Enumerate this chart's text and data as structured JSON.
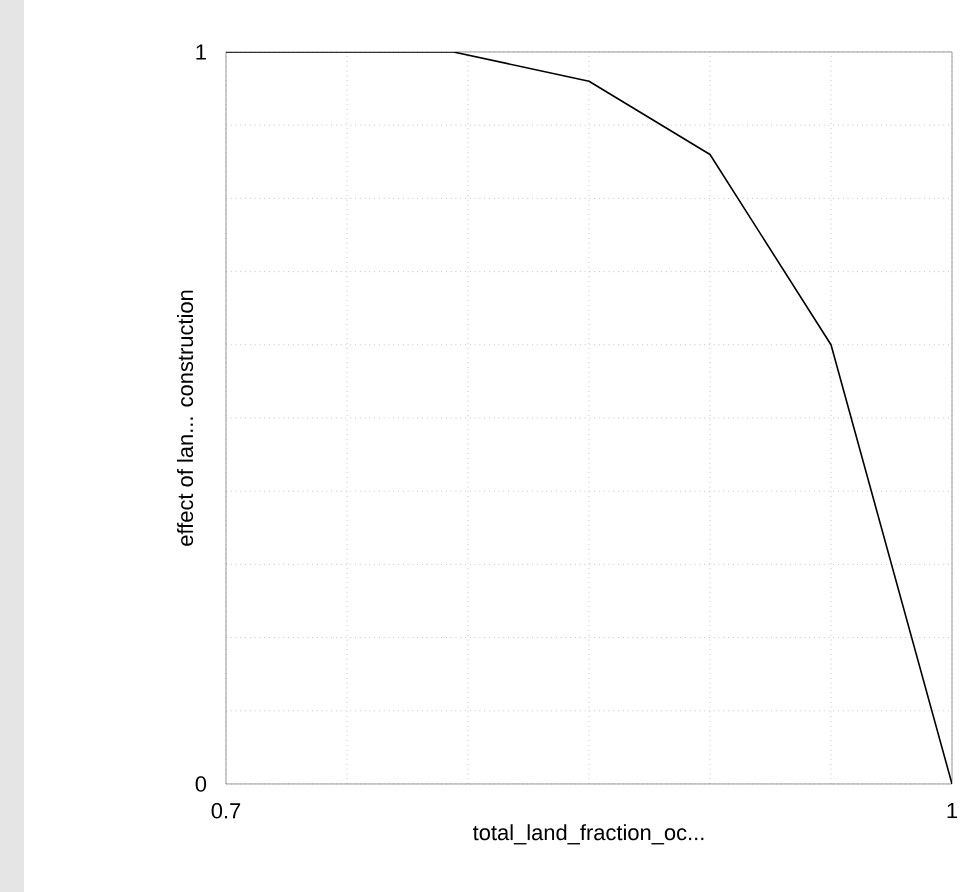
{
  "chart_data": {
    "type": "line",
    "xlabel": "total_land_fraction_oc...",
    "ylabel": "effect of lan... construction",
    "x": [
      0.7,
      0.794,
      0.85,
      0.9,
      0.95,
      1.0
    ],
    "series": [
      {
        "color": "#000000",
        "values": [
          1,
          1,
          0.96,
          0.86,
          0.6,
          0
        ]
      }
    ],
    "xlim": [
      0.7,
      1
    ],
    "ylim": [
      0,
      1
    ],
    "xticks": [
      0.7,
      {
        "value": 0.75,
        "label": null
      },
      {
        "value": 0.8,
        "label": null
      },
      {
        "value": 0.85,
        "label": null
      },
      {
        "value": 0.9,
        "label": null
      },
      {
        "value": 0.95,
        "label": null
      },
      1
    ],
    "yticks": [
      0,
      {
        "value": 0.1,
        "label": null
      },
      {
        "value": 0.2,
        "label": null
      },
      {
        "value": 0.3,
        "label": null
      },
      {
        "value": 0.4,
        "label": null
      },
      {
        "value": 0.5,
        "label": null
      },
      {
        "value": 0.6,
        "label": null
      },
      {
        "value": 0.7,
        "label": null
      },
      {
        "value": 0.8,
        "label": null
      },
      {
        "value": 0.9,
        "label": null
      },
      1
    ],
    "grid": true,
    "marker": "none",
    "line_style": "solid"
  }
}
